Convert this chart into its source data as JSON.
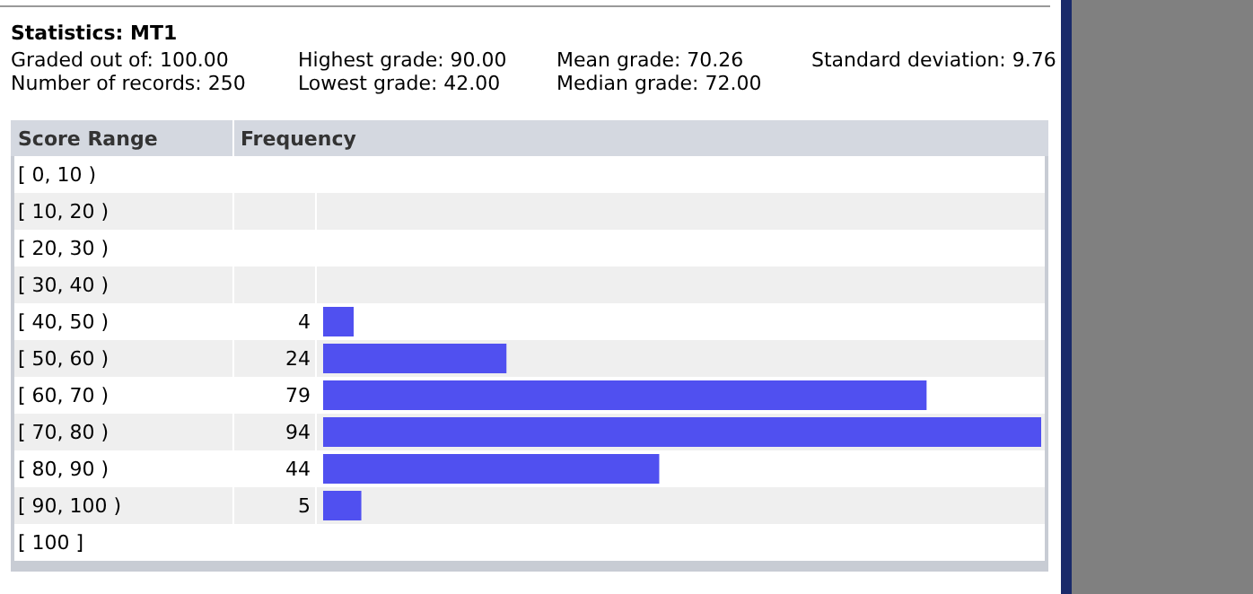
{
  "chart_data": {
    "type": "bar",
    "orientation": "horizontal",
    "title": "Statistics: MT1",
    "annotations": [
      "Graded out of: 100.00",
      "Highest grade: 90.00",
      "Mean grade: 70.26",
      "Standard deviation: 9.76",
      "Number of records: 250",
      "Lowest grade: 42.00",
      "Median grade: 72.00"
    ],
    "ylabel": "Score Range",
    "xlabel": "Frequency",
    "categories": [
      "[ 0, 10 )",
      "[ 10, 20 )",
      "[ 20, 30 )",
      "[ 30, 40 )",
      "[ 40, 50 )",
      "[ 50, 60 )",
      "[ 60, 70 )",
      "[ 70, 80 )",
      "[ 80, 90 )",
      "[ 90, 100 )",
      "[ 100 ]"
    ],
    "values": [
      null,
      null,
      null,
      null,
      4,
      24,
      79,
      94,
      44,
      5,
      null
    ],
    "color": "#5050f0",
    "data_labels": true
  }
}
